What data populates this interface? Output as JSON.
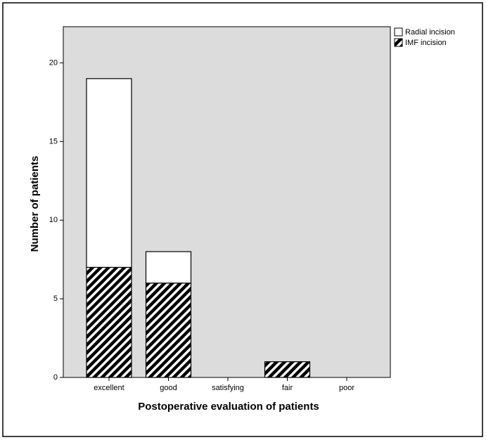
{
  "chart_data": {
    "type": "stacked-bar",
    "x_label": "Postoperative evaluation of patients",
    "y_label": "Number of patients",
    "categories": [
      "excellent",
      "good",
      "satisfying",
      "fair",
      "poor"
    ],
    "series": [
      {
        "name": "Radial incision",
        "color": "#ffffff",
        "values": [
          12,
          2,
          0,
          0,
          0
        ]
      },
      {
        "name": "IMF incision",
        "color": "#000000",
        "pattern": "hatch",
        "values": [
          7,
          6,
          0,
          1,
          0
        ]
      }
    ],
    "ylim": [
      0,
      22.3
    ],
    "yticks": [
      0,
      5,
      10,
      15,
      20
    ],
    "background": "#dcdcdc",
    "legend": "right"
  }
}
